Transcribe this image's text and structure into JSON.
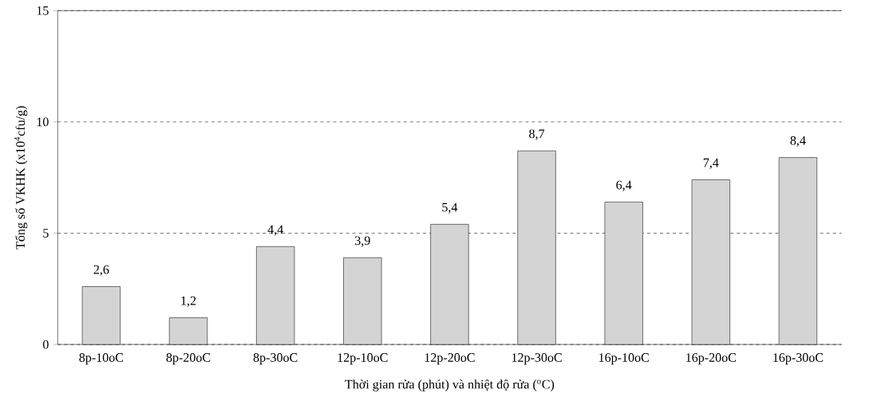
{
  "chart_data": {
    "type": "bar",
    "xlabel": "Thời gian rửa (phút) và nhiệt độ rửa ($^{o}$C)",
    "ylabel": "Tổng số VKHK (x10$^{4}$cfu/g)",
    "categories": [
      "8p-10oC",
      "8p-20oC",
      "8p-30oC",
      "12p-10oC",
      "12p-20oC",
      "12p-30oC",
      "16p-10oC",
      "16p-20oC",
      "16p-30oC"
    ],
    "values": [
      2.6,
      1.2,
      4.4,
      3.9,
      5.4,
      8.7,
      6.4,
      7.4,
      8.4
    ],
    "value_labels": [
      "2,6",
      "1,2",
      "4,4",
      "3,9",
      "5,4",
      "8,7",
      "6,4",
      "7,4",
      "8,4"
    ],
    "color": "#d4d4d4",
    "ylim": [
      0,
      15
    ],
    "yticks": [
      0,
      5,
      10,
      15
    ],
    "grid": "y",
    "line_style": "dashed"
  }
}
